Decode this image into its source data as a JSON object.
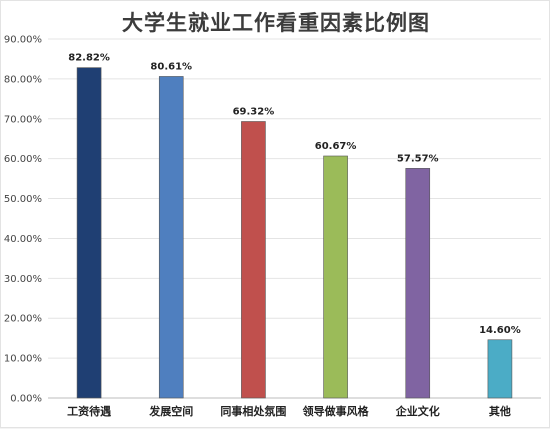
{
  "chart_data": {
    "type": "bar",
    "title": "大学生就业工作看重因素比例图",
    "categories": [
      "工资待遇",
      "发展空间",
      "同事相处氛围",
      "领导做事风格",
      "企业文化",
      "其他"
    ],
    "values": [
      82.82,
      80.61,
      69.32,
      60.67,
      57.57,
      14.6
    ],
    "value_labels": [
      "82.82%",
      "80.61%",
      "69.32%",
      "60.67%",
      "57.57%",
      "14.60%"
    ],
    "colors": [
      "#1f3f73",
      "#4f7fbf",
      "#c0504d",
      "#9bbb59",
      "#8064a2",
      "#4bacc6"
    ],
    "ylim": [
      0,
      90
    ],
    "yticks": [
      0,
      10,
      20,
      30,
      40,
      50,
      60,
      70,
      80,
      90
    ],
    "ytick_labels": [
      "0.00%",
      "10.00%",
      "20.00%",
      "30.00%",
      "40.00%",
      "50.00%",
      "60.00%",
      "70.00%",
      "80.00%",
      "90.00%"
    ],
    "grid": true,
    "legend": "none"
  }
}
